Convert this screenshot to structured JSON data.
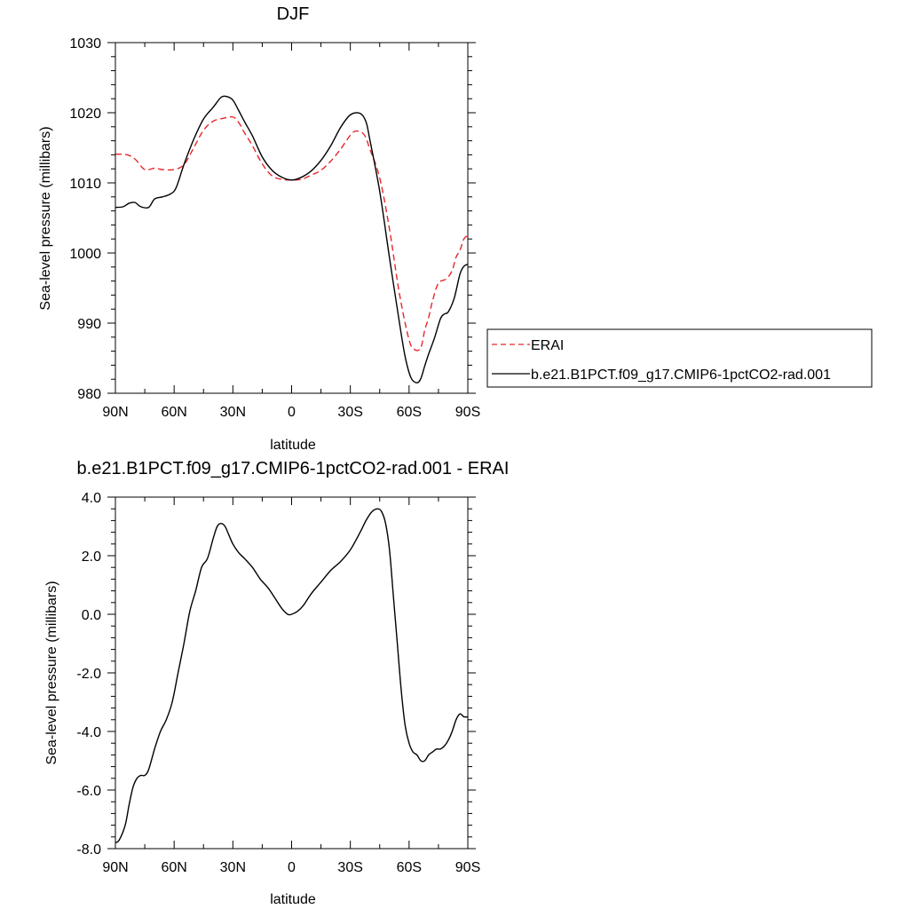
{
  "colors": {
    "erai": "#e8262a",
    "model": "#000000"
  },
  "chart_data": [
    {
      "type": "line",
      "title": "DJF",
      "xlabel": "latitude",
      "ylabel": "Sea-level pressure (millibars)",
      "xlim": [
        90,
        -90
      ],
      "ylim": [
        980,
        1030
      ],
      "x_ticks": [
        90,
        60,
        30,
        0,
        -30,
        -60,
        -90
      ],
      "x_tick_labels": [
        "90N",
        "60N",
        "30N",
        "0",
        "30S",
        "60S",
        "90S"
      ],
      "y_ticks": [
        980,
        990,
        1000,
        1010,
        1020,
        1030
      ],
      "y_tick_labels": [
        "980",
        "990",
        "1000",
        "1010",
        "1020",
        "1030"
      ],
      "legend": "right",
      "series": [
        {
          "name": "ERAI",
          "style": "dashed",
          "color": "#e8262a",
          "x": [
            90,
            84,
            80,
            75,
            70,
            66,
            60,
            55,
            50,
            45,
            40,
            35,
            30,
            27,
            24,
            20,
            15,
            10,
            5,
            0,
            -5,
            -10,
            -15,
            -20,
            -25,
            -30,
            -33,
            -37,
            -40,
            -45,
            -50,
            -55,
            -60,
            -63,
            -66,
            -68,
            -70,
            -72,
            -75,
            -79,
            -82,
            -84,
            -86,
            -88,
            -90
          ],
          "values": [
            1014.1,
            1014.0,
            1013.4,
            1011.9,
            1012.1,
            1011.9,
            1011.9,
            1012.6,
            1015.0,
            1017.5,
            1018.8,
            1019.2,
            1019.4,
            1018.6,
            1017.1,
            1015.3,
            1012.7,
            1011.0,
            1010.5,
            1010.4,
            1010.5,
            1011.1,
            1011.8,
            1013.1,
            1014.8,
            1016.8,
            1017.4,
            1016.9,
            1014.8,
            1010.7,
            1003.4,
            994.3,
            987.6,
            986.2,
            986.5,
            989.0,
            990.8,
            993.2,
            995.7,
            996.3,
            997.5,
            999.4,
            1000.4,
            1002.0,
            1002.5
          ]
        },
        {
          "name": "b.e21.B1PCT.f09_g17.CMIP6-1pctCO2-rad.001",
          "style": "solid",
          "color": "#000000",
          "x": [
            90,
            86,
            83,
            80,
            77,
            73,
            70,
            66,
            62,
            59,
            55,
            50,
            45,
            40,
            36,
            33,
            30,
            27,
            24,
            20,
            15,
            10,
            5,
            0,
            -5,
            -10,
            -15,
            -20,
            -25,
            -30,
            -35,
            -38,
            -40,
            -45,
            -50,
            -55,
            -58,
            -61,
            -64,
            -66,
            -68,
            -70,
            -73,
            -76,
            -78,
            -80,
            -83,
            -86,
            -88,
            -90
          ],
          "values": [
            1006.5,
            1006.6,
            1007.1,
            1007.2,
            1006.6,
            1006.5,
            1007.7,
            1008.0,
            1008.4,
            1009.3,
            1012.6,
            1016.2,
            1019.1,
            1020.8,
            1022.2,
            1022.3,
            1021.8,
            1020.3,
            1018.7,
            1016.7,
            1013.7,
            1011.8,
            1010.8,
            1010.4,
            1010.8,
            1011.7,
            1013.2,
            1015.3,
            1017.9,
            1019.7,
            1019.9,
            1018.7,
            1016.1,
            1008.8,
            999.3,
            990.2,
            985.2,
            982.2,
            981.5,
            982.1,
            983.9,
            985.6,
            987.9,
            990.6,
            991.3,
            991.6,
            993.5,
            997.0,
            998.1,
            998.4
          ]
        }
      ]
    },
    {
      "type": "line",
      "title": "b.e21.B1PCT.f09_g17.CMIP6-1pctCO2-rad.001 - ERAI",
      "xlabel": "latitude",
      "ylabel": "Sea-level pressure (millibars)",
      "xlim": [
        90,
        -90
      ],
      "ylim": [
        -8.0,
        4.0
      ],
      "x_ticks": [
        90,
        60,
        30,
        0,
        -30,
        -60,
        -90
      ],
      "x_tick_labels": [
        "90N",
        "60N",
        "30N",
        "0",
        "30S",
        "60S",
        "90S"
      ],
      "y_ticks": [
        -8.0,
        -6.0,
        -4.0,
        -2.0,
        0.0,
        2.0,
        4.0
      ],
      "y_tick_labels": [
        "-8.0",
        "-6.0",
        "-4.0",
        "-2.0",
        "0.0",
        "2.0",
        "4.0"
      ],
      "series": [
        {
          "style": "solid",
          "color": "#000000",
          "x": [
            90,
            88,
            85,
            83,
            81,
            79,
            77,
            75,
            73,
            70,
            67,
            64,
            61,
            58,
            55,
            52,
            49,
            46,
            43,
            40,
            38,
            36,
            34,
            32,
            30,
            27,
            24,
            20,
            16,
            12,
            8,
            5,
            2,
            0,
            -3,
            -6,
            -10,
            -15,
            -20,
            -25,
            -30,
            -35,
            -38,
            -41,
            -44,
            -46,
            -48,
            -50,
            -52,
            -54,
            -56,
            -58,
            -60,
            -62,
            -64,
            -66,
            -68,
            -70,
            -72,
            -74,
            -76,
            -78,
            -80,
            -82,
            -84,
            -86,
            -88,
            -90
          ],
          "values": [
            -7.8,
            -7.7,
            -7.2,
            -6.5,
            -5.9,
            -5.6,
            -5.5,
            -5.5,
            -5.3,
            -4.6,
            -4.0,
            -3.6,
            -3.0,
            -2.0,
            -1.0,
            0.1,
            0.8,
            1.6,
            1.9,
            2.6,
            3.0,
            3.1,
            3.0,
            2.7,
            2.4,
            2.1,
            1.9,
            1.6,
            1.2,
            0.9,
            0.5,
            0.2,
            0.0,
            0.0,
            0.1,
            0.3,
            0.7,
            1.1,
            1.5,
            1.8,
            2.2,
            2.8,
            3.2,
            3.5,
            3.6,
            3.5,
            3.1,
            2.2,
            0.6,
            -1.0,
            -2.6,
            -3.8,
            -4.4,
            -4.7,
            -4.8,
            -5.0,
            -5.0,
            -4.8,
            -4.7,
            -4.6,
            -4.6,
            -4.5,
            -4.3,
            -4.0,
            -3.6,
            -3.4,
            -3.5,
            -3.5
          ]
        }
      ]
    }
  ]
}
